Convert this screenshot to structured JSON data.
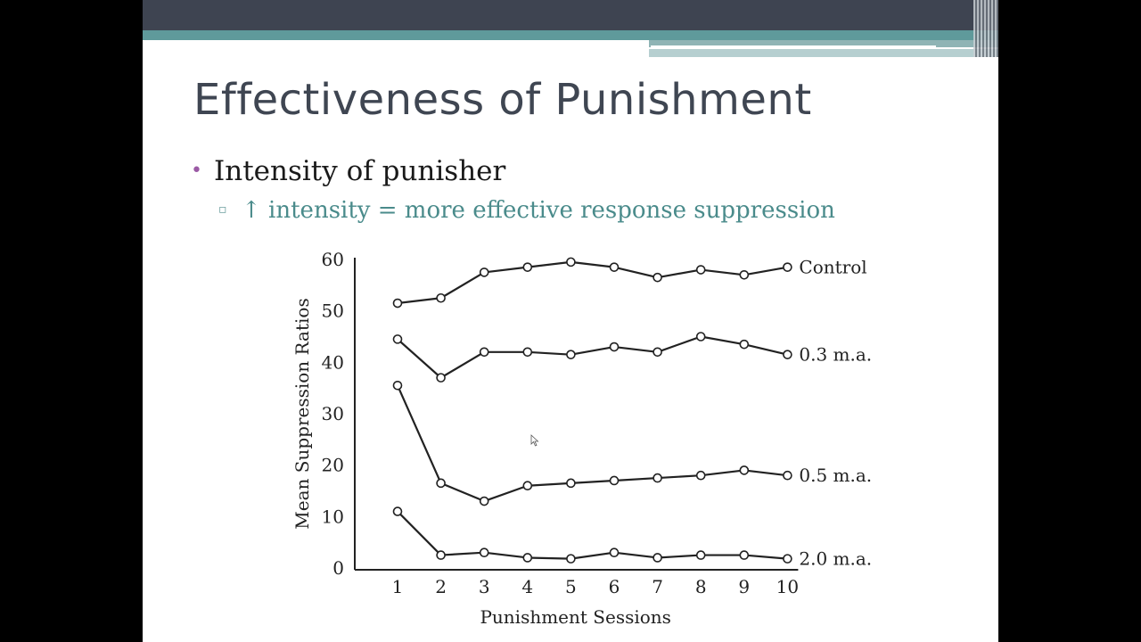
{
  "slide": {
    "title": "Effectiveness of Punishment",
    "bullet1": "Intensity of punisher",
    "bullet2": "↑ intensity = more effective response suppression",
    "bullet1_marker": "•",
    "bullet2_marker": "▫"
  },
  "colors": {
    "title": "#3f4652",
    "bullet_marker": "#9b5aa5",
    "sub_bullet_text": "#4a8b8b",
    "header_bar": "#3e4451",
    "accent_teal": "#5f9a9b"
  },
  "chart_data": {
    "type": "line",
    "title": "",
    "xlabel": "Punishment Sessions",
    "ylabel": "Mean Suppression Ratios",
    "x": [
      1,
      2,
      3,
      4,
      5,
      6,
      7,
      8,
      9,
      10
    ],
    "xticks": [
      "1",
      "2",
      "3",
      "4",
      "5",
      "6",
      "7",
      "8",
      "9",
      "10"
    ],
    "yticks": [
      "0",
      "10",
      "20",
      "30",
      "40",
      "50",
      "60"
    ],
    "ylim": [
      0,
      60
    ],
    "grid": false,
    "legend": "inline labels at right end of each line",
    "series": [
      {
        "name": "Control",
        "values": [
          51.5,
          52.5,
          57.5,
          58.5,
          59.5,
          58.5,
          56.5,
          58,
          57,
          58.5
        ]
      },
      {
        "name": "0.3 m.a.",
        "values": [
          44.5,
          37,
          42,
          42,
          41.5,
          43,
          42,
          45,
          43.5,
          41.5
        ]
      },
      {
        "name": "0.5 m.a.",
        "values": [
          35.5,
          16.5,
          13,
          16,
          16.5,
          17,
          17.5,
          18,
          19,
          18
        ]
      },
      {
        "name": "2.0 m.a.",
        "values": [
          11,
          2.5,
          3,
          2,
          1.8,
          3,
          2,
          2.5,
          2.5,
          1.8
        ]
      }
    ]
  }
}
